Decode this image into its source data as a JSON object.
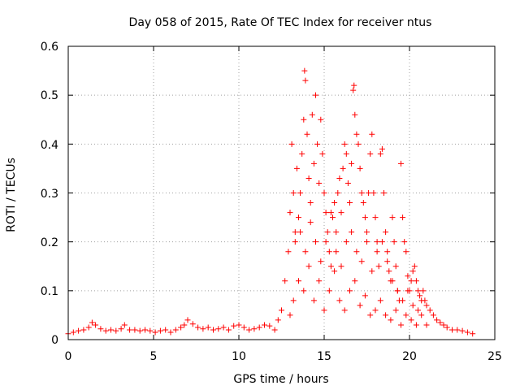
{
  "chart_data": {
    "type": "scatter",
    "title": "Day 058 of 2015, Rate Of TEC Index for receiver ntus",
    "xlabel": "GPS time / hours",
    "ylabel": "ROTI / TECUs",
    "xlim": [
      0,
      25
    ],
    "ylim": [
      0,
      0.6
    ],
    "x_ticks": [
      "0",
      "5",
      "10",
      "15",
      "20",
      "25"
    ],
    "y_ticks": [
      "0",
      "0.1",
      "0.2",
      "0.3",
      "0.4",
      "0.5",
      "0.6"
    ],
    "grid": true,
    "legend": "none",
    "marker": "plus",
    "color": "#ff0000",
    "series": [
      {
        "x": [
          0.0,
          0.3,
          0.6,
          0.9,
          1.2,
          1.4,
          1.6,
          1.9,
          2.2,
          2.5,
          2.8,
          3.1,
          3.3,
          3.6,
          3.9,
          4.2,
          4.5,
          4.8,
          5.1,
          5.4,
          5.7,
          6.0,
          6.3,
          6.6,
          6.8,
          7.0,
          7.3,
          7.6,
          7.9,
          8.2,
          8.5,
          8.8,
          9.1,
          9.4,
          9.7,
          10.0,
          10.3,
          10.6,
          10.9,
          11.2,
          11.5,
          11.8,
          12.1,
          12.3,
          12.5,
          12.7,
          12.9,
          13.0,
          13.1,
          13.2,
          13.3,
          13.4,
          13.5,
          13.6,
          13.7,
          13.8,
          13.85,
          13.9,
          14.0,
          14.1,
          14.2,
          14.3,
          14.4,
          14.5,
          14.6,
          14.7,
          14.8,
          14.9,
          15.0,
          15.1,
          15.2,
          15.3,
          15.4,
          15.5,
          15.6,
          15.7,
          15.8,
          15.9,
          16.0,
          16.1,
          16.2,
          16.3,
          16.4,
          16.5,
          16.6,
          16.7,
          16.75,
          16.8,
          16.9,
          17.0,
          17.1,
          17.2,
          17.3,
          17.4,
          17.5,
          17.6,
          17.7,
          17.8,
          17.9,
          18.0,
          18.1,
          18.2,
          18.3,
          18.4,
          18.5,
          18.6,
          18.7,
          18.8,
          18.9,
          19.0,
          19.1,
          19.2,
          19.3,
          19.4,
          19.5,
          19.6,
          19.7,
          19.8,
          19.9,
          20.0,
          20.1,
          20.2,
          20.3,
          20.4,
          20.5,
          20.6,
          20.7,
          20.8,
          20.9,
          21.0,
          21.2,
          21.4,
          21.6,
          21.8,
          22.0,
          22.2,
          22.5,
          22.8,
          23.1,
          23.4,
          23.7,
          13.0,
          13.2,
          13.5,
          13.8,
          14.1,
          14.4,
          14.7,
          15.0,
          15.3,
          15.6,
          15.9,
          16.2,
          16.5,
          16.8,
          17.1,
          17.4,
          17.7,
          18.0,
          18.3,
          18.6,
          18.9,
          19.2,
          19.5,
          19.8,
          20.1,
          20.4,
          20.7,
          21.0,
          13.3,
          13.6,
          13.9,
          14.2,
          14.5,
          14.8,
          15.1,
          15.4,
          15.7,
          16.0,
          16.3,
          16.6,
          16.9,
          17.2,
          17.5,
          17.8,
          18.1,
          18.4,
          18.7,
          19.0,
          19.3,
          19.6,
          19.9,
          20.2,
          20.5
        ],
        "y": [
          0.012,
          0.015,
          0.018,
          0.02,
          0.025,
          0.035,
          0.03,
          0.022,
          0.018,
          0.02,
          0.018,
          0.022,
          0.03,
          0.02,
          0.02,
          0.018,
          0.02,
          0.018,
          0.015,
          0.018,
          0.02,
          0.015,
          0.02,
          0.025,
          0.03,
          0.04,
          0.032,
          0.025,
          0.022,
          0.025,
          0.02,
          0.022,
          0.025,
          0.02,
          0.028,
          0.03,
          0.025,
          0.02,
          0.022,
          0.025,
          0.03,
          0.028,
          0.02,
          0.04,
          0.06,
          0.12,
          0.18,
          0.26,
          0.4,
          0.3,
          0.22,
          0.35,
          0.25,
          0.3,
          0.38,
          0.45,
          0.55,
          0.53,
          0.42,
          0.33,
          0.28,
          0.46,
          0.36,
          0.5,
          0.4,
          0.32,
          0.45,
          0.38,
          0.3,
          0.26,
          0.22,
          0.18,
          0.15,
          0.25,
          0.28,
          0.22,
          0.3,
          0.33,
          0.26,
          0.35,
          0.4,
          0.38,
          0.32,
          0.28,
          0.36,
          0.51,
          0.52,
          0.46,
          0.42,
          0.4,
          0.35,
          0.3,
          0.28,
          0.25,
          0.22,
          0.3,
          0.38,
          0.42,
          0.3,
          0.25,
          0.2,
          0.15,
          0.38,
          0.39,
          0.3,
          0.22,
          0.18,
          0.14,
          0.12,
          0.25,
          0.2,
          0.15,
          0.1,
          0.08,
          0.36,
          0.25,
          0.2,
          0.18,
          0.13,
          0.1,
          0.12,
          0.14,
          0.15,
          0.12,
          0.1,
          0.09,
          0.08,
          0.1,
          0.08,
          0.07,
          0.06,
          0.05,
          0.04,
          0.035,
          0.03,
          0.025,
          0.02,
          0.02,
          0.018,
          0.015,
          0.012,
          0.05,
          0.08,
          0.12,
          0.1,
          0.15,
          0.08,
          0.12,
          0.06,
          0.1,
          0.14,
          0.08,
          0.06,
          0.1,
          0.12,
          0.07,
          0.09,
          0.05,
          0.06,
          0.08,
          0.05,
          0.04,
          0.06,
          0.03,
          0.05,
          0.04,
          0.03,
          0.05,
          0.03,
          0.2,
          0.22,
          0.18,
          0.24,
          0.2,
          0.16,
          0.2,
          0.26,
          0.18,
          0.15,
          0.2,
          0.22,
          0.18,
          0.16,
          0.2,
          0.14,
          0.18,
          0.2,
          0.16,
          0.12,
          0.1,
          0.08,
          0.1,
          0.07,
          0.06
        ]
      }
    ]
  }
}
